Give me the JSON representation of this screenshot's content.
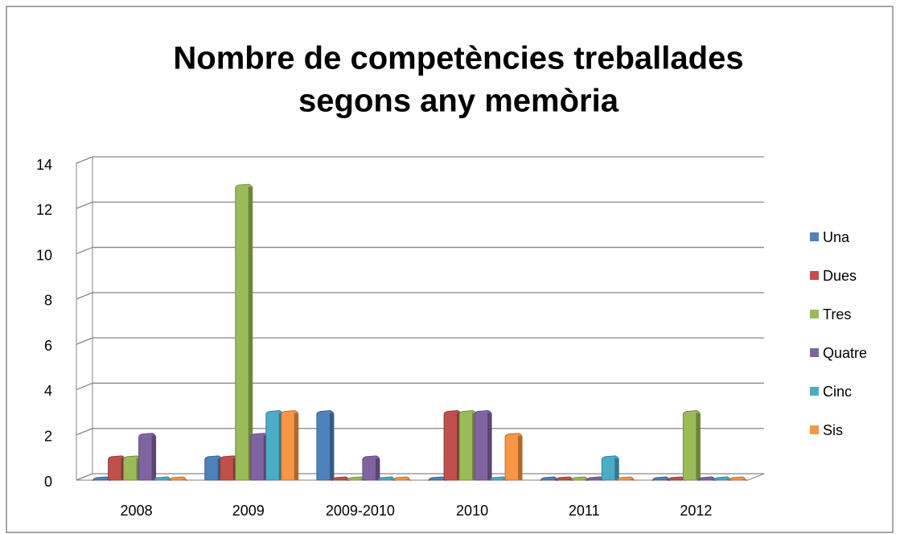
{
  "chart_data": {
    "type": "bar",
    "title": [
      "Nombre de competències treballades",
      "segons any memòria"
    ],
    "categories": [
      "2008",
      "2009",
      "2009-2010",
      "2010",
      "2011",
      "2012"
    ],
    "series": [
      {
        "name": "Una",
        "color": "#4f81bd",
        "values": [
          0,
          1,
          3,
          0,
          0,
          0
        ]
      },
      {
        "name": "Dues",
        "color": "#c0504d",
        "values": [
          1,
          1,
          0,
          3,
          0,
          0
        ]
      },
      {
        "name": "Tres",
        "color": "#9bbb59",
        "values": [
          1,
          13,
          0,
          3,
          0,
          3
        ]
      },
      {
        "name": "Quatre",
        "color": "#8064a2",
        "values": [
          2,
          2,
          1,
          3,
          0,
          0
        ]
      },
      {
        "name": "Cinc",
        "color": "#4bacc6",
        "values": [
          0,
          3,
          0,
          0,
          1,
          0
        ]
      },
      {
        "name": "Sis",
        "color": "#f79646",
        "values": [
          0,
          3,
          0,
          2,
          0,
          0
        ]
      }
    ],
    "ylim": [
      0,
      14
    ],
    "yticks": [
      0,
      2,
      4,
      6,
      8,
      10,
      12,
      14
    ],
    "grid": true,
    "legend": "right"
  }
}
